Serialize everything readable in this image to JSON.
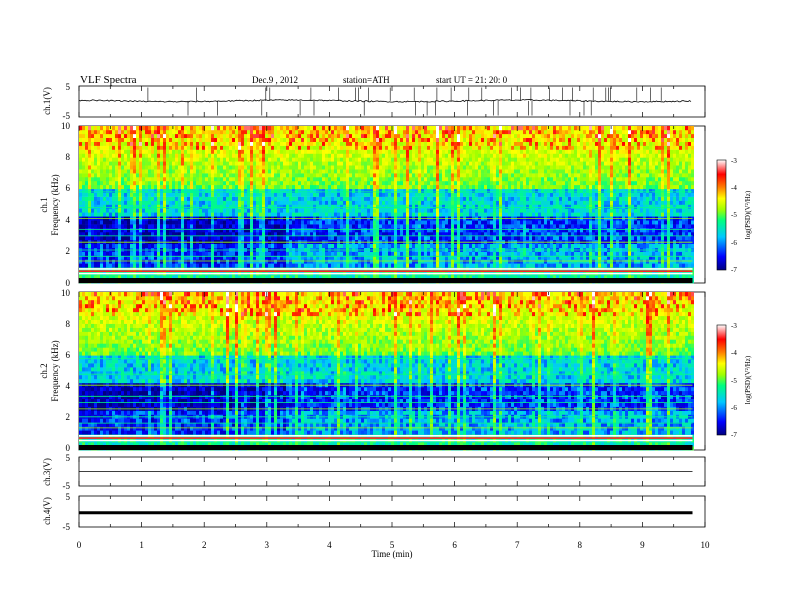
{
  "header": {
    "title": "VLF  Spectra",
    "date": "Dec.9  , 2012",
    "station": "station=ATH",
    "start": "start  UT  =   21: 20: 0"
  },
  "chart_data": [
    {
      "id": "ch1-waveform",
      "type": "line",
      "ylabel": "ch.1(V)",
      "ylim": [
        -5,
        5
      ],
      "yticks": [
        "5",
        "-5"
      ],
      "x_end_min": 9.8,
      "description_level": 0.2
    },
    {
      "id": "ch1-spectrogram",
      "type": "heatmap",
      "ylabel": [
        "ch.1",
        "Frequency  (kHz)"
      ],
      "ylim": [
        0,
        10
      ],
      "yticks": [
        "0",
        "2",
        "4",
        "6",
        "8",
        "10"
      ],
      "x_end_min": 9.8,
      "colorbar": {
        "label": "log(PSD)(V²/Hz)",
        "range": [
          -7,
          -3
        ],
        "ticks": [
          "-3",
          "-4",
          "-5",
          "-6",
          "-7"
        ]
      },
      "step_at_min": 3.3
    },
    {
      "id": "ch2-spectrogram",
      "type": "heatmap",
      "ylabel": [
        "ch.2",
        "Frequency  (kHz)"
      ],
      "ylim": [
        0,
        10
      ],
      "yticks": [
        "0",
        "2",
        "4",
        "6",
        "8",
        "10"
      ],
      "x_end_min": 9.8,
      "colorbar": {
        "label": "log(PSD)(V²/Hz)",
        "range": [
          -7,
          -3
        ],
        "ticks": [
          "-3",
          "-4",
          "-5",
          "-6",
          "-7"
        ]
      },
      "step_at_min": 3.3
    },
    {
      "id": "ch3-waveform",
      "type": "line",
      "ylabel": "ch.3(V)",
      "ylim": [
        -5,
        5
      ],
      "yticks": [
        "5",
        "-5"
      ],
      "x_end_min": 9.8,
      "level": 0
    },
    {
      "id": "ch4-waveform",
      "type": "line",
      "ylabel": "ch.4(V)",
      "ylim": [
        -5,
        5
      ],
      "yticks": [
        "5",
        "-5"
      ],
      "x_end_min": 9.8,
      "level": -0.4
    }
  ],
  "xaxis": {
    "label": "Time  (min)",
    "range": [
      0,
      10
    ],
    "ticks": [
      "0",
      "1",
      "2",
      "3",
      "4",
      "5",
      "6",
      "7",
      "8",
      "9",
      "10"
    ]
  },
  "colors": {
    "colormap": [
      "#000080",
      "#0000ff",
      "#00c8ff",
      "#00ff80",
      "#a0ff00",
      "#ffff00",
      "#ff8000",
      "#ff0000",
      "#ffffff"
    ]
  }
}
